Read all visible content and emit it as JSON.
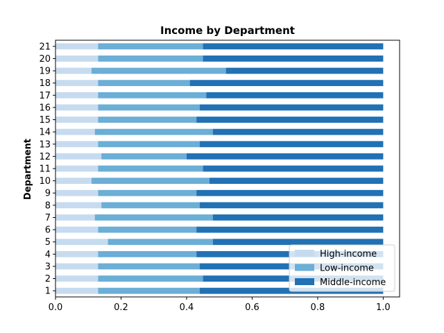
{
  "chart_data": {
    "type": "bar",
    "orientation": "horizontal",
    "stacked": true,
    "title": "Income by Department",
    "xlabel": "",
    "ylabel": "Department",
    "xlim": [
      0,
      1.05
    ],
    "xticks": [
      "0.0",
      "0.2",
      "0.4",
      "0.6",
      "0.8",
      "1.0"
    ],
    "grid": false,
    "legend_position": "lower-right",
    "categories": [
      "1",
      "2",
      "3",
      "4",
      "5",
      "6",
      "7",
      "8",
      "9",
      "10",
      "11",
      "12",
      "13",
      "14",
      "15",
      "16",
      "17",
      "18",
      "19",
      "20",
      "21"
    ],
    "series": [
      {
        "name": "High-income",
        "color": "#c6dbef",
        "values": [
          0.13,
          0.13,
          0.13,
          0.13,
          0.16,
          0.13,
          0.12,
          0.14,
          0.13,
          0.11,
          0.13,
          0.14,
          0.13,
          0.12,
          0.13,
          0.13,
          0.13,
          0.13,
          0.11,
          0.13,
          0.13
        ]
      },
      {
        "name": "Low-income",
        "color": "#6baed6",
        "values": [
          0.31,
          0.32,
          0.31,
          0.3,
          0.32,
          0.3,
          0.36,
          0.3,
          0.3,
          0.36,
          0.32,
          0.26,
          0.31,
          0.36,
          0.3,
          0.31,
          0.33,
          0.28,
          0.41,
          0.32,
          0.32
        ]
      },
      {
        "name": "Middle-income",
        "color": "#2171b5",
        "values": [
          0.56,
          0.55,
          0.56,
          0.57,
          0.52,
          0.57,
          0.52,
          0.56,
          0.57,
          0.53,
          0.55,
          0.6,
          0.56,
          0.52,
          0.57,
          0.56,
          0.54,
          0.59,
          0.48,
          0.55,
          0.55
        ]
      }
    ]
  }
}
